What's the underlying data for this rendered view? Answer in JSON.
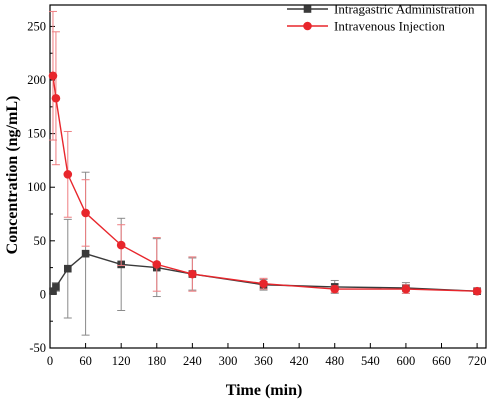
{
  "chart_data": {
    "type": "line",
    "xlabel": "Time (min)",
    "ylabel": "Concentration (ng/mL)",
    "xlim": [
      0,
      735
    ],
    "ylim": [
      -50,
      270
    ],
    "xticks": [
      0,
      60,
      120,
      180,
      240,
      300,
      360,
      420,
      480,
      540,
      600,
      660,
      720
    ],
    "yticks": [
      -50,
      0,
      50,
      100,
      150,
      200,
      250
    ],
    "grid": false,
    "legend_position": "top-right",
    "series": [
      {
        "name": "Intragastric Administration",
        "color": "#3a3a3a",
        "marker": "square",
        "x": [
          5,
          10,
          30,
          60,
          120,
          180,
          240,
          360,
          480,
          600,
          720
        ],
        "y": [
          3,
          7,
          24,
          38,
          28,
          25,
          19,
          9,
          7,
          6,
          3
        ],
        "err": [
          2,
          4,
          46,
          76,
          43,
          27,
          15,
          5,
          6,
          5,
          2
        ]
      },
      {
        "name": "Intravenous Injection",
        "color": "#e8262c",
        "marker": "circle",
        "x": [
          5,
          10,
          30,
          60,
          120,
          180,
          240,
          360,
          480,
          600,
          720
        ],
        "y": [
          204,
          183,
          112,
          76,
          46,
          28,
          19,
          10,
          5,
          5,
          3
        ],
        "err": [
          60,
          62,
          40,
          31,
          19,
          25,
          16,
          5,
          3,
          4,
          2
        ]
      }
    ]
  }
}
